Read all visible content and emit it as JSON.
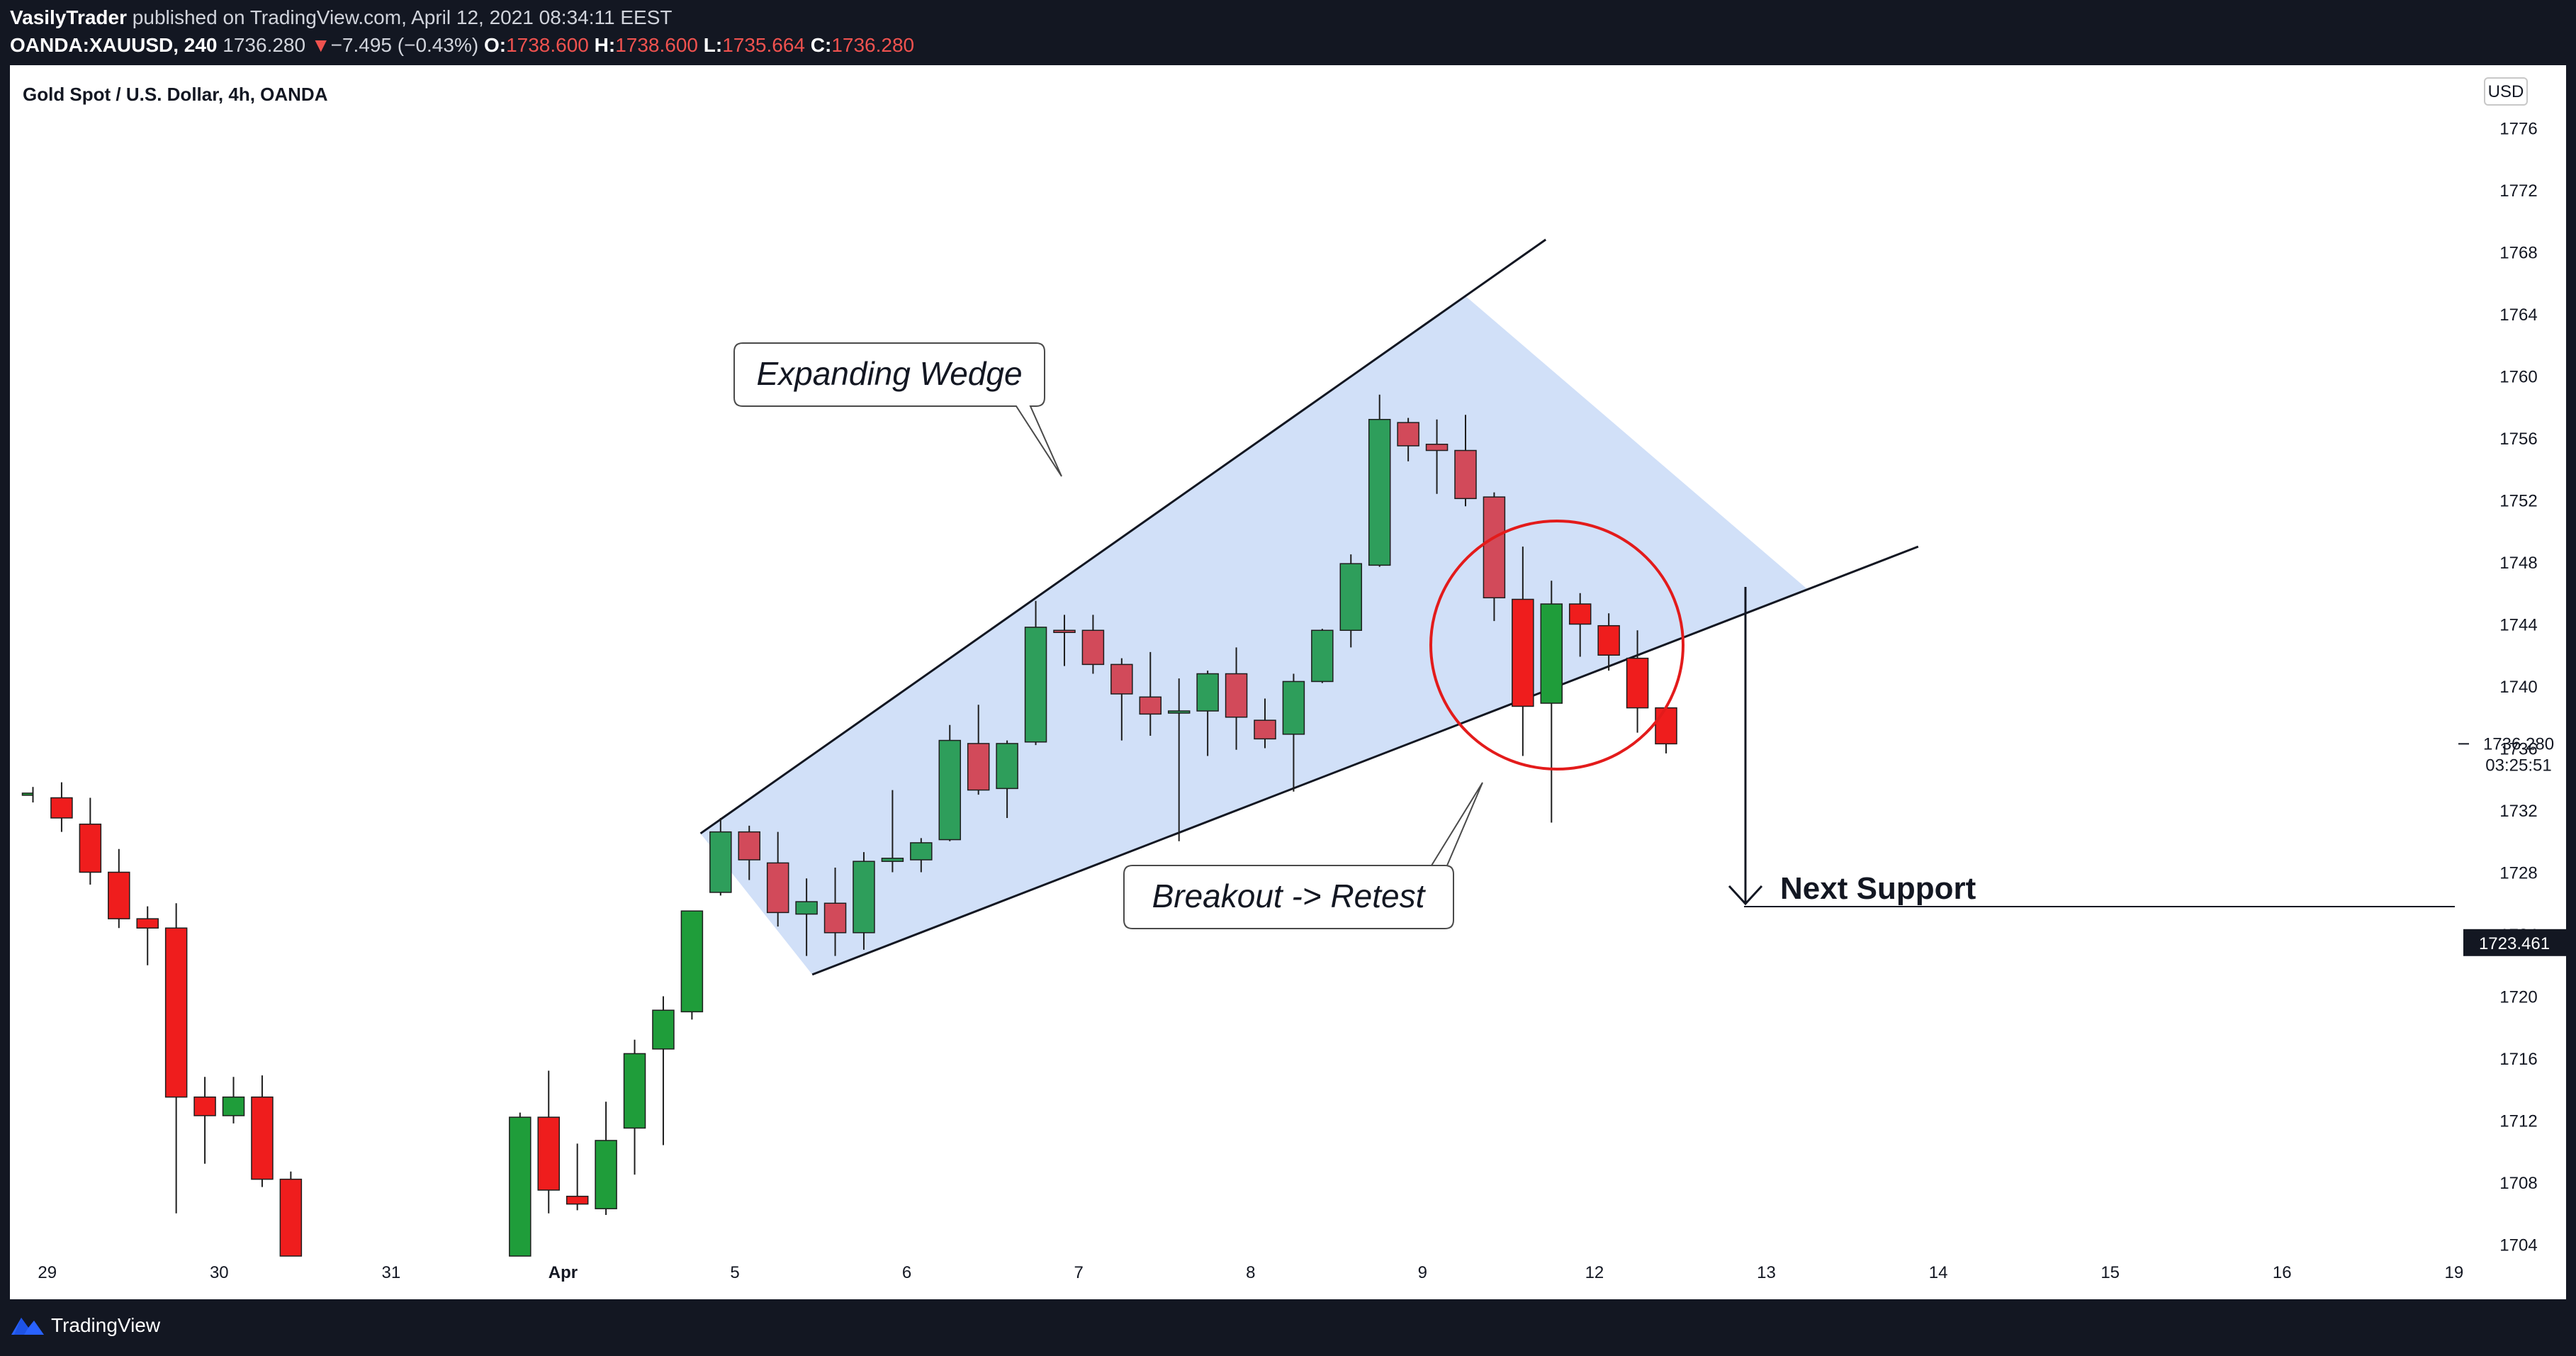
{
  "header": {
    "author": "VasilyTrader",
    "published_text": "published on TradingView.com, April 12, 2021 08:34:11 EEST",
    "symbol": "OANDA:XAUUSD, 240",
    "last": "1736.280",
    "change_arrow": "▼",
    "change": "−7.495 (−0.43%)",
    "o_label": "O:",
    "o_value": "1738.600",
    "h_label": "H:",
    "h_value": "1738.600",
    "l_label": "L:",
    "l_value": "1735.664",
    "c_label": "C:",
    "c_value": "1736.280"
  },
  "footer": {
    "brand": "TradingView"
  },
  "colors": {
    "up": "#1f9d3a",
    "down": "#ef1d1d",
    "up_faded": "#2e9e5b",
    "down_faded": "#d24a5a",
    "wedge_fill": "#c9dbf7",
    "circle": "#e31b1b",
    "background": "#ffffff",
    "frame": "#131722"
  },
  "chart_data": {
    "type": "candlestick",
    "title": "Gold Spot / U.S. Dollar, 4h, OANDA",
    "currency_label": "USD",
    "ylim": [
      1700,
      1776
    ],
    "y_ticks": [
      1704,
      1708,
      1712,
      1716,
      1720,
      1724,
      1728,
      1732,
      1736,
      1740,
      1744,
      1748,
      1752,
      1756,
      1760,
      1764,
      1768,
      1772,
      1776
    ],
    "x_ticks": [
      {
        "label": "29",
        "slot": 0.5
      },
      {
        "label": "30",
        "slot": 6.5
      },
      {
        "label": "31",
        "slot": 12.5
      },
      {
        "label": "Apr",
        "slot": 18.5,
        "bold": true
      },
      {
        "label": "5",
        "slot": 24.5
      },
      {
        "label": "6",
        "slot": 30.5
      },
      {
        "label": "7",
        "slot": 36.5
      },
      {
        "label": "8",
        "slot": 42.5
      },
      {
        "label": "9",
        "slot": 48.5
      },
      {
        "label": "12",
        "slot": 54.5
      },
      {
        "label": "13",
        "slot": 60.5
      },
      {
        "label": "14",
        "slot": 66.5
      },
      {
        "label": "15",
        "slot": 72.5
      },
      {
        "label": "16",
        "slot": 78.5
      },
      {
        "label": "19",
        "slot": 84.5
      }
    ],
    "candles": [
      {
        "slot": 0,
        "o": 1733.0,
        "h": 1733.5,
        "l": 1732.5,
        "c": 1733.1,
        "half": true
      },
      {
        "slot": 1,
        "o": 1732.8,
        "h": 1733.8,
        "l": 1730.6,
        "c": 1731.5
      },
      {
        "slot": 2,
        "o": 1731.1,
        "h": 1732.8,
        "l": 1727.2,
        "c": 1728.0
      },
      {
        "slot": 3,
        "o": 1728.0,
        "h": 1729.5,
        "l": 1724.4,
        "c": 1725.0
      },
      {
        "slot": 4,
        "o": 1725.0,
        "h": 1725.8,
        "l": 1722.0,
        "c": 1724.4
      },
      {
        "slot": 5,
        "o": 1724.4,
        "h": 1726.0,
        "l": 1706.0,
        "c": 1713.5
      },
      {
        "slot": 6,
        "o": 1713.5,
        "h": 1714.8,
        "l": 1709.2,
        "c": 1712.3
      },
      {
        "slot": 7,
        "o": 1712.3,
        "h": 1714.8,
        "l": 1711.8,
        "c": 1713.5
      },
      {
        "slot": 8,
        "o": 1713.5,
        "h": 1714.9,
        "l": 1707.7,
        "c": 1708.2
      },
      {
        "slot": 9,
        "o": 1708.2,
        "h": 1708.7,
        "l": 1702.0,
        "c": 1702.0
      },
      {
        "slot": 17,
        "o": 1701.5,
        "h": 1712.5,
        "l": 1701.5,
        "c": 1712.2
      },
      {
        "slot": 18,
        "o": 1712.2,
        "h": 1715.2,
        "l": 1706.0,
        "c": 1707.5
      },
      {
        "slot": 19,
        "o": 1707.1,
        "h": 1710.5,
        "l": 1706.2,
        "c": 1706.6
      },
      {
        "slot": 20,
        "o": 1706.3,
        "h": 1713.2,
        "l": 1705.9,
        "c": 1710.7
      },
      {
        "slot": 21,
        "o": 1711.5,
        "h": 1717.2,
        "l": 1708.5,
        "c": 1716.3
      },
      {
        "slot": 22,
        "o": 1716.6,
        "h": 1720.0,
        "l": 1710.4,
        "c": 1719.1
      },
      {
        "slot": 23,
        "o": 1719.0,
        "h": 1725.5,
        "l": 1718.5,
        "c": 1725.5
      },
      {
        "slot": 24,
        "o": 1726.7,
        "h": 1731.5,
        "l": 1726.5,
        "c": 1730.6
      },
      {
        "slot": 25,
        "o": 1730.6,
        "h": 1731.0,
        "l": 1727.5,
        "c": 1728.8
      },
      {
        "slot": 26,
        "o": 1728.6,
        "h": 1730.6,
        "l": 1724.5,
        "c": 1725.4
      },
      {
        "slot": 27,
        "o": 1725.3,
        "h": 1727.6,
        "l": 1722.6,
        "c": 1726.1
      },
      {
        "slot": 28,
        "o": 1726.0,
        "h": 1728.3,
        "l": 1722.6,
        "c": 1724.1
      },
      {
        "slot": 29,
        "o": 1724.1,
        "h": 1729.3,
        "l": 1723.0,
        "c": 1728.7
      },
      {
        "slot": 30,
        "o": 1728.7,
        "h": 1733.3,
        "l": 1728.0,
        "c": 1728.9
      },
      {
        "slot": 31,
        "o": 1728.8,
        "h": 1730.2,
        "l": 1728.0,
        "c": 1729.9
      },
      {
        "slot": 32,
        "o": 1730.1,
        "h": 1737.5,
        "l": 1730.0,
        "c": 1736.5
      },
      {
        "slot": 33,
        "o": 1736.3,
        "h": 1738.8,
        "l": 1733.0,
        "c": 1733.3
      },
      {
        "slot": 34,
        "o": 1733.4,
        "h": 1736.5,
        "l": 1731.5,
        "c": 1736.3
      },
      {
        "slot": 35,
        "o": 1736.4,
        "h": 1745.5,
        "l": 1736.2,
        "c": 1743.8
      },
      {
        "slot": 36,
        "o": 1743.6,
        "h": 1744.6,
        "l": 1741.3,
        "c": 1743.5
      },
      {
        "slot": 37,
        "o": 1743.6,
        "h": 1744.6,
        "l": 1740.8,
        "c": 1741.4
      },
      {
        "slot": 38,
        "o": 1741.4,
        "h": 1741.8,
        "l": 1736.5,
        "c": 1739.5
      },
      {
        "slot": 39,
        "o": 1739.3,
        "h": 1742.2,
        "l": 1736.8,
        "c": 1738.2
      },
      {
        "slot": 40,
        "o": 1738.4,
        "h": 1740.5,
        "l": 1730.0,
        "c": 1738.4
      },
      {
        "slot": 41,
        "o": 1738.4,
        "h": 1741.0,
        "l": 1735.5,
        "c": 1740.8
      },
      {
        "slot": 42,
        "o": 1740.8,
        "h": 1742.5,
        "l": 1735.9,
        "c": 1738.0
      },
      {
        "slot": 43,
        "o": 1737.8,
        "h": 1739.2,
        "l": 1736.0,
        "c": 1736.6
      },
      {
        "slot": 44,
        "o": 1736.9,
        "h": 1740.8,
        "l": 1733.2,
        "c": 1740.3
      },
      {
        "slot": 45,
        "o": 1740.3,
        "h": 1743.7,
        "l": 1740.2,
        "c": 1743.6
      },
      {
        "slot": 46,
        "o": 1743.6,
        "h": 1748.5,
        "l": 1742.5,
        "c": 1747.9
      },
      {
        "slot": 47,
        "o": 1747.8,
        "h": 1758.8,
        "l": 1747.7,
        "c": 1757.2
      },
      {
        "slot": 48,
        "o": 1757.0,
        "h": 1757.3,
        "l": 1754.5,
        "c": 1755.5
      },
      {
        "slot": 49,
        "o": 1755.6,
        "h": 1757.2,
        "l": 1752.4,
        "c": 1755.2
      },
      {
        "slot": 50,
        "o": 1755.2,
        "h": 1757.5,
        "l": 1751.6,
        "c": 1752.1
      },
      {
        "slot": 51,
        "o": 1752.2,
        "h": 1752.5,
        "l": 1744.2,
        "c": 1745.7
      },
      {
        "slot": 52,
        "o": 1745.6,
        "h": 1749.0,
        "l": 1735.5,
        "c": 1738.7
      },
      {
        "slot": 53,
        "o": 1738.9,
        "h": 1746.8,
        "l": 1731.2,
        "c": 1745.3
      },
      {
        "slot": 54,
        "o": 1745.3,
        "h": 1746.0,
        "l": 1741.9,
        "c": 1744.0
      },
      {
        "slot": 55,
        "o": 1743.9,
        "h": 1744.7,
        "l": 1741.0,
        "c": 1742.0
      },
      {
        "slot": 56,
        "o": 1741.8,
        "h": 1743.6,
        "l": 1737.0,
        "c": 1738.6
      },
      {
        "slot": 57,
        "o": 1738.6,
        "h": 1738.6,
        "l": 1735.664,
        "c": 1736.28
      }
    ],
    "wedge": {
      "upper_line": [
        {
          "slot": 23.3,
          "value": 1730.5
        },
        {
          "slot": 52.8,
          "value": 1768.8
        }
      ],
      "lower_line": [
        {
          "slot": 27.2,
          "value": 1721.4
        },
        {
          "slot": 65.8,
          "value": 1749.0
        }
      ]
    },
    "annotations": [
      {
        "text": "Expanding Wedge"
      },
      {
        "text": "Breakout -> Retest"
      },
      {
        "text": "Next Support"
      }
    ],
    "price_labels": [
      {
        "label": "1736.280",
        "value": 1736.28,
        "countdown": "03:25:51"
      },
      {
        "label": "1723.461",
        "value": 1723.461,
        "highlighted": true
      }
    ]
  }
}
